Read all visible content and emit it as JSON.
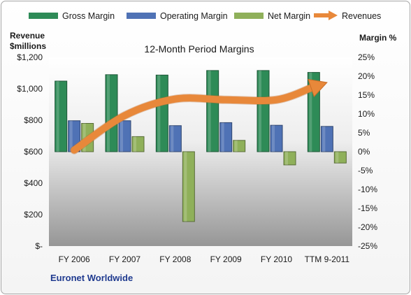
{
  "chart_data": {
    "type": "bar",
    "title": "12-Month Period Margins",
    "company": "Euronet Worldwide",
    "categories": [
      "FY 2006",
      "FY 2007",
      "FY 2008",
      "FY 2009",
      "FY 2010",
      "TTM 9-2011"
    ],
    "left_axis": {
      "label_line1": "Revenue",
      "label_line2": "$millions",
      "range": [
        0,
        1200
      ],
      "ticks": [
        0,
        200,
        400,
        600,
        800,
        1000,
        1200
      ],
      "tick_labels": [
        "$-",
        "$200",
        "$400",
        "$600",
        "$800",
        "$1,000",
        "$1,200"
      ]
    },
    "right_axis": {
      "label": "Margin %",
      "range": [
        -25,
        25
      ],
      "ticks": [
        -25,
        -20,
        -15,
        -10,
        -5,
        0,
        5,
        10,
        15,
        20,
        25
      ],
      "tick_labels": [
        "-25%",
        "-20%",
        "-15%",
        "-10%",
        "-5%",
        "0%",
        "5%",
        "10%",
        "15%",
        "20%",
        "25%"
      ]
    },
    "series": [
      {
        "name": "Gross Margin",
        "axis": "right",
        "kind": "bar",
        "color": "#2e8b57",
        "values": [
          18.7,
          20.4,
          20.3,
          21.5,
          21.5,
          21.0
        ]
      },
      {
        "name": "Operating Margin",
        "axis": "right",
        "kind": "bar",
        "color": "#4f72b5",
        "values": [
          8.2,
          8.2,
          6.9,
          7.7,
          7.0,
          6.7
        ]
      },
      {
        "name": "Net Margin",
        "axis": "right",
        "kind": "bar",
        "color": "#8fb05a",
        "values": [
          7.5,
          4.0,
          -18.5,
          3.0,
          -3.5,
          -3.0
        ]
      },
      {
        "name": "Revenues",
        "axis": "left",
        "kind": "line-arrow",
        "color": "#e8883a",
        "values": [
          610,
          830,
          935,
          930,
          930,
          1040
        ]
      }
    ],
    "grid": false,
    "legend_position": "top"
  }
}
